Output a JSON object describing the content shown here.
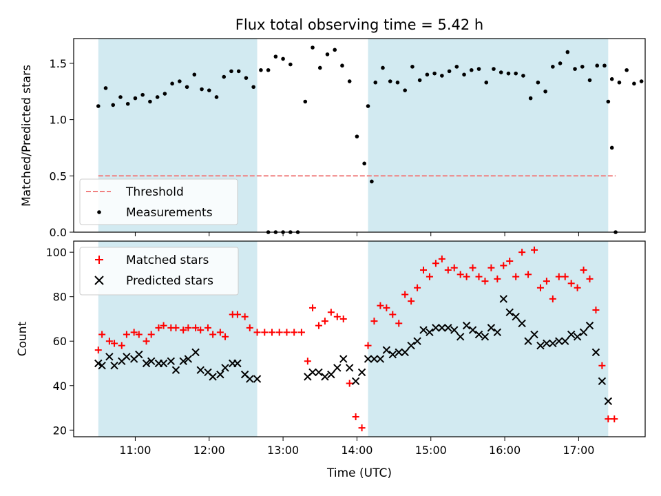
{
  "chart_data": [
    {
      "type": "scatter",
      "title": "Flux total observing time = 5.42 h",
      "ylabel": "Matched/Predicted stars",
      "xlim": [
        "10:10",
        "17:54"
      ],
      "ylim": [
        0,
        1.72
      ],
      "xticks": [
        "11:00",
        "12:00",
        "13:00",
        "14:00",
        "15:00",
        "16:00",
        "17:00"
      ],
      "yticks": [
        "0.0",
        "0.5",
        "1.0",
        "1.5"
      ],
      "legend_position": "lower-left",
      "grid": false,
      "shaded_intervals": [
        [
          "10:30",
          "12:39"
        ],
        [
          "14:09",
          "17:24"
        ]
      ],
      "shade_color": "#add8e6",
      "series": [
        {
          "name": "Threshold",
          "kind": "line",
          "style": "dashed",
          "color": "#f08080",
          "points": [
            [
              "10:30",
              0.5
            ],
            [
              "17:30",
              0.5
            ]
          ]
        },
        {
          "name": "Measurements",
          "kind": "scatter",
          "color": "#000000",
          "points": [
            [
              "10:30",
              1.12
            ],
            [
              "10:36",
              1.28
            ],
            [
              "10:42",
              1.13
            ],
            [
              "10:48",
              1.2
            ],
            [
              "10:54",
              1.14
            ],
            [
              "11:00",
              1.19
            ],
            [
              "11:06",
              1.22
            ],
            [
              "11:12",
              1.16
            ],
            [
              "11:18",
              1.2
            ],
            [
              "11:24",
              1.23
            ],
            [
              "11:30",
              1.32
            ],
            [
              "11:36",
              1.34
            ],
            [
              "11:42",
              1.29
            ],
            [
              "11:48",
              1.4
            ],
            [
              "11:54",
              1.27
            ],
            [
              "12:00",
              1.26
            ],
            [
              "12:06",
              1.2
            ],
            [
              "12:12",
              1.38
            ],
            [
              "12:18",
              1.43
            ],
            [
              "12:24",
              1.43
            ],
            [
              "12:30",
              1.37
            ],
            [
              "12:36",
              1.29
            ],
            [
              "12:42",
              1.44
            ],
            [
              "12:48",
              1.44
            ],
            [
              "12:54",
              1.56
            ],
            [
              "13:00",
              1.54
            ],
            [
              "13:06",
              1.49
            ],
            [
              "12:48",
              0.0
            ],
            [
              "12:54",
              0.0
            ],
            [
              "13:00",
              0.0
            ],
            [
              "13:06",
              0.0
            ],
            [
              "13:12",
              0.0
            ],
            [
              "13:18",
              1.16
            ],
            [
              "13:24",
              1.64
            ],
            [
              "13:30",
              1.46
            ],
            [
              "13:36",
              1.58
            ],
            [
              "13:42",
              1.62
            ],
            [
              "13:48",
              1.48
            ],
            [
              "13:54",
              1.34
            ],
            [
              "14:00",
              0.85
            ],
            [
              "14:06",
              0.61
            ],
            [
              "14:12",
              0.45
            ],
            [
              "14:09",
              1.12
            ],
            [
              "14:15",
              1.33
            ],
            [
              "14:21",
              1.46
            ],
            [
              "14:27",
              1.34
            ],
            [
              "14:33",
              1.33
            ],
            [
              "14:39",
              1.26
            ],
            [
              "14:45",
              1.47
            ],
            [
              "14:51",
              1.35
            ],
            [
              "14:57",
              1.4
            ],
            [
              "15:03",
              1.41
            ],
            [
              "15:09",
              1.39
            ],
            [
              "15:15",
              1.43
            ],
            [
              "15:21",
              1.47
            ],
            [
              "15:27",
              1.4
            ],
            [
              "15:33",
              1.44
            ],
            [
              "15:39",
              1.45
            ],
            [
              "15:45",
              1.33
            ],
            [
              "15:51",
              1.45
            ],
            [
              "15:57",
              1.42
            ],
            [
              "16:03",
              1.41
            ],
            [
              "16:09",
              1.41
            ],
            [
              "16:15",
              1.39
            ],
            [
              "16:21",
              1.19
            ],
            [
              "16:27",
              1.33
            ],
            [
              "16:33",
              1.25
            ],
            [
              "16:39",
              1.47
            ],
            [
              "16:45",
              1.5
            ],
            [
              "16:51",
              1.6
            ],
            [
              "16:57",
              1.45
            ],
            [
              "17:03",
              1.47
            ],
            [
              "17:09",
              1.35
            ],
            [
              "17:15",
              1.48
            ],
            [
              "17:21",
              1.48
            ],
            [
              "17:27",
              1.36
            ],
            [
              "17:33",
              1.33
            ],
            [
              "17:39",
              1.44
            ],
            [
              "17:45",
              1.32
            ],
            [
              "17:51",
              1.34
            ],
            [
              "17:24",
              1.16
            ],
            [
              "17:27",
              0.75
            ],
            [
              "17:30",
              0.0
            ]
          ]
        }
      ]
    },
    {
      "type": "scatter",
      "ylabel": "Count",
      "xlabel": "Time (UTC)",
      "xlim": [
        "10:10",
        "17:54"
      ],
      "ylim": [
        17,
        105
      ],
      "xticks": [
        "11:00",
        "12:00",
        "13:00",
        "14:00",
        "15:00",
        "16:00",
        "17:00"
      ],
      "yticks": [
        "20",
        "40",
        "60",
        "80",
        "100"
      ],
      "legend_position": "upper-left",
      "grid": false,
      "shaded_intervals": [
        [
          "10:30",
          "12:39"
        ],
        [
          "14:09",
          "17:24"
        ]
      ],
      "shade_color": "#add8e6",
      "series": [
        {
          "name": "Matched stars",
          "marker": "plus",
          "color": "#ff0000",
          "points": [
            [
              "10:30",
              56
            ],
            [
              "10:33",
              63
            ],
            [
              "10:39",
              60
            ],
            [
              "10:43",
              59
            ],
            [
              "10:49",
              58
            ],
            [
              "10:53",
              63
            ],
            [
              "10:59",
              64
            ],
            [
              "11:03",
              63
            ],
            [
              "11:09",
              60
            ],
            [
              "11:13",
              63
            ],
            [
              "11:19",
              66
            ],
            [
              "11:23",
              67
            ],
            [
              "11:29",
              66
            ],
            [
              "11:33",
              66
            ],
            [
              "11:39",
              65
            ],
            [
              "11:43",
              66
            ],
            [
              "11:49",
              66
            ],
            [
              "11:53",
              65
            ],
            [
              "11:59",
              66
            ],
            [
              "12:03",
              63
            ],
            [
              "12:09",
              64
            ],
            [
              "12:13",
              62
            ],
            [
              "12:19",
              72
            ],
            [
              "12:23",
              72
            ],
            [
              "12:29",
              71
            ],
            [
              "12:33",
              66
            ],
            [
              "12:39",
              64
            ],
            [
              "12:45",
              64
            ],
            [
              "12:51",
              64
            ],
            [
              "12:57",
              64
            ],
            [
              "13:03",
              64
            ],
            [
              "13:09",
              64
            ],
            [
              "13:15",
              64
            ],
            [
              "13:20",
              51
            ],
            [
              "13:24",
              75
            ],
            [
              "13:29",
              67
            ],
            [
              "13:34",
              69
            ],
            [
              "13:39",
              73
            ],
            [
              "13:44",
              71
            ],
            [
              "13:49",
              70
            ],
            [
              "13:54",
              41
            ],
            [
              "13:59",
              26
            ],
            [
              "14:04",
              21
            ],
            [
              "14:09",
              58
            ],
            [
              "14:14",
              69
            ],
            [
              "14:19",
              76
            ],
            [
              "14:24",
              75
            ],
            [
              "14:29",
              72
            ],
            [
              "14:34",
              68
            ],
            [
              "14:39",
              81
            ],
            [
              "14:44",
              78
            ],
            [
              "14:49",
              84
            ],
            [
              "14:54",
              92
            ],
            [
              "14:59",
              89
            ],
            [
              "15:04",
              95
            ],
            [
              "15:09",
              97
            ],
            [
              "15:14",
              92
            ],
            [
              "15:19",
              93
            ],
            [
              "15:24",
              90
            ],
            [
              "15:29",
              89
            ],
            [
              "15:34",
              93
            ],
            [
              "15:39",
              89
            ],
            [
              "15:44",
              87
            ],
            [
              "15:49",
              93
            ],
            [
              "15:54",
              88
            ],
            [
              "15:59",
              94
            ],
            [
              "16:04",
              96
            ],
            [
              "16:09",
              89
            ],
            [
              "16:14",
              100
            ],
            [
              "16:19",
              90
            ],
            [
              "16:24",
              101
            ],
            [
              "16:29",
              84
            ],
            [
              "16:34",
              87
            ],
            [
              "16:39",
              79
            ],
            [
              "16:44",
              89
            ],
            [
              "16:49",
              89
            ],
            [
              "16:54",
              86
            ],
            [
              "16:59",
              84
            ],
            [
              "17:04",
              92
            ],
            [
              "17:09",
              88
            ],
            [
              "17:14",
              74
            ],
            [
              "17:19",
              49
            ],
            [
              "17:24",
              25
            ],
            [
              "17:29",
              25
            ]
          ]
        },
        {
          "name": "Predicted stars",
          "marker": "x",
          "color": "#000000",
          "points": [
            [
              "10:30",
              50
            ],
            [
              "10:33",
              49
            ],
            [
              "10:39",
              53
            ],
            [
              "10:43",
              49
            ],
            [
              "10:49",
              51
            ],
            [
              "10:53",
              53
            ],
            [
              "10:59",
              52
            ],
            [
              "11:03",
              54
            ],
            [
              "11:09",
              50
            ],
            [
              "11:13",
              51
            ],
            [
              "11:19",
              50
            ],
            [
              "11:23",
              50
            ],
            [
              "11:29",
              51
            ],
            [
              "11:33",
              47
            ],
            [
              "11:39",
              51
            ],
            [
              "11:43",
              52
            ],
            [
              "11:49",
              55
            ],
            [
              "11:53",
              47
            ],
            [
              "11:59",
              46
            ],
            [
              "12:03",
              44
            ],
            [
              "12:09",
              45
            ],
            [
              "12:13",
              48
            ],
            [
              "12:19",
              50
            ],
            [
              "12:23",
              50
            ],
            [
              "12:29",
              45
            ],
            [
              "12:33",
              43
            ],
            [
              "12:39",
              43
            ],
            [
              "13:20",
              44
            ],
            [
              "13:24",
              46
            ],
            [
              "13:29",
              46
            ],
            [
              "13:34",
              44
            ],
            [
              "13:39",
              45
            ],
            [
              "13:44",
              48
            ],
            [
              "13:49",
              52
            ],
            [
              "13:54",
              48
            ],
            [
              "13:59",
              42
            ],
            [
              "14:04",
              46
            ],
            [
              "14:09",
              52
            ],
            [
              "14:14",
              52
            ],
            [
              "14:19",
              52
            ],
            [
              "14:24",
              56
            ],
            [
              "14:29",
              54
            ],
            [
              "14:34",
              55
            ],
            [
              "14:39",
              55
            ],
            [
              "14:44",
              58
            ],
            [
              "14:49",
              60
            ],
            [
              "14:54",
              65
            ],
            [
              "14:59",
              64
            ],
            [
              "15:04",
              66
            ],
            [
              "15:09",
              66
            ],
            [
              "15:14",
              66
            ],
            [
              "15:19",
              65
            ],
            [
              "15:24",
              62
            ],
            [
              "15:29",
              67
            ],
            [
              "15:34",
              65
            ],
            [
              "15:39",
              63
            ],
            [
              "15:44",
              62
            ],
            [
              "15:49",
              66
            ],
            [
              "15:54",
              64
            ],
            [
              "15:59",
              79
            ],
            [
              "16:04",
              73
            ],
            [
              "16:09",
              71
            ],
            [
              "16:14",
              68
            ],
            [
              "16:19",
              60
            ],
            [
              "16:24",
              63
            ],
            [
              "16:29",
              58
            ],
            [
              "16:34",
              59
            ],
            [
              "16:39",
              59
            ],
            [
              "16:44",
              60
            ],
            [
              "16:49",
              60
            ],
            [
              "16:54",
              63
            ],
            [
              "16:59",
              62
            ],
            [
              "17:04",
              64
            ],
            [
              "17:09",
              67
            ],
            [
              "17:14",
              55
            ],
            [
              "17:19",
              42
            ],
            [
              "17:24",
              33
            ]
          ]
        }
      ]
    }
  ]
}
